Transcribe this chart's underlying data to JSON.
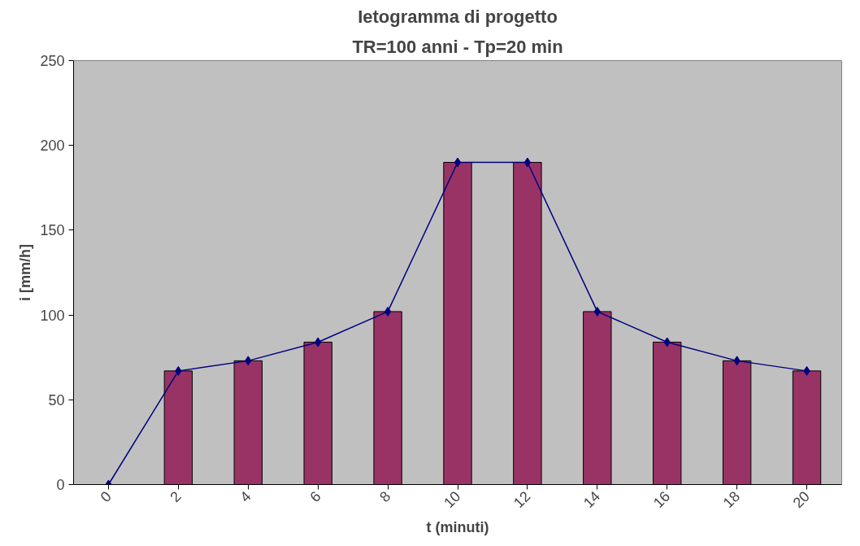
{
  "chart_data": {
    "type": "bar",
    "title": "Ietogramma di progetto",
    "subtitle": "TR=100 anni - Tp=20 min",
    "xlabel": "t (minuti)",
    "ylabel": "i [mm/h]",
    "categories": [
      "0",
      "2",
      "4",
      "6",
      "8",
      "10",
      "12",
      "14",
      "16",
      "18",
      "20"
    ],
    "series": [
      {
        "color": "#993366",
        "values": [
          null,
          67,
          73,
          84,
          102,
          190,
          190,
          102,
          84,
          73,
          67
        ]
      },
      {
        "type": "line",
        "color": "#000080",
        "marker": "diamond",
        "values": [
          0,
          67,
          73,
          84,
          102,
          190,
          190,
          102,
          84,
          73,
          67
        ]
      }
    ],
    "ylim": [
      0,
      250
    ],
    "yticks": [
      0,
      50,
      100,
      150,
      200,
      250
    ],
    "grid": false
  }
}
